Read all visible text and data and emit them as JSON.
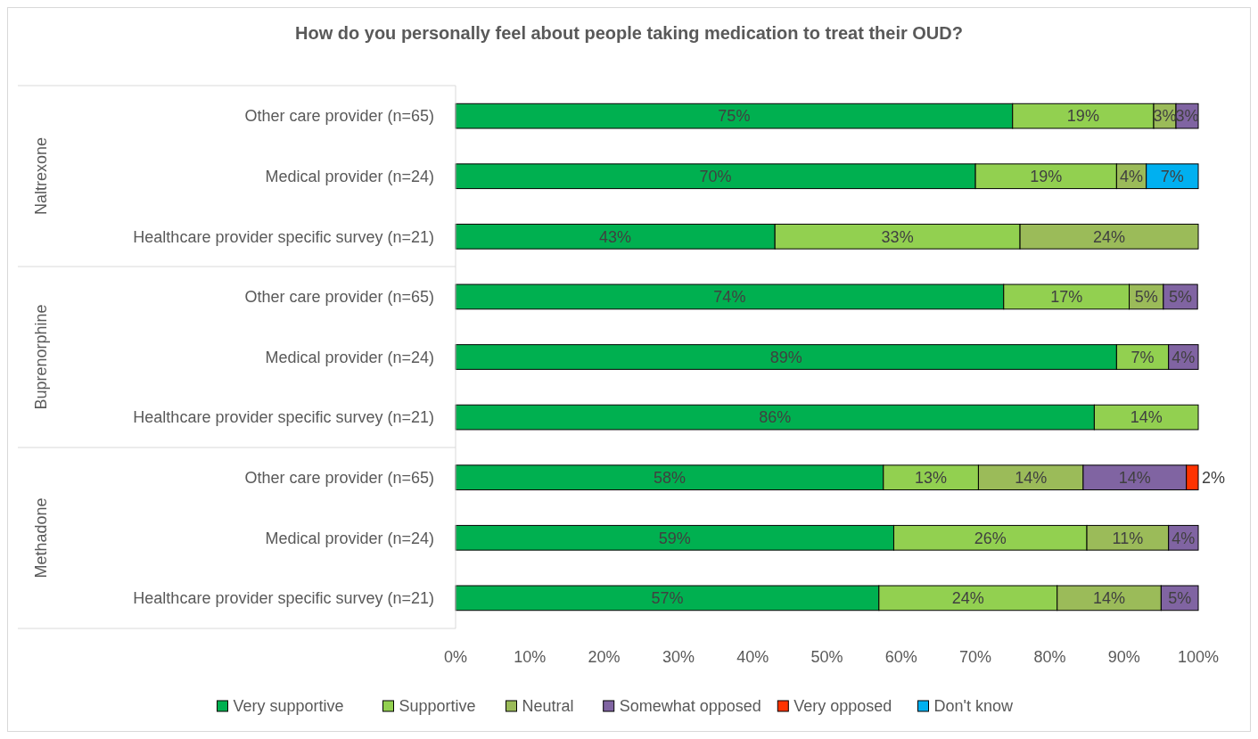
{
  "chart_data": {
    "type": "bar",
    "orientation": "horizontal",
    "stacked": true,
    "title": "How do you personally feel about people taking medication to treat their OUD?",
    "categories": [
      "Other care provider (n=65)",
      "Medical provider (n=24)",
      "Healthcare provider specific survey (n=21)",
      "Other care provider (n=65)",
      "Medical provider (n=24)",
      "Healthcare provider specific survey (n=21)",
      "Other care provider (n=65)",
      "Medical provider (n=24)",
      "Healthcare provider specific survey (n=21)"
    ],
    "annotations": [
      "Naltrexone",
      "Buprenorphine",
      "Methadone"
    ],
    "series": [
      {
        "name": "Very supportive",
        "color": "#00b050",
        "values": [
          75,
          70,
          43,
          73.8,
          89,
          86,
          57.6,
          59,
          57
        ],
        "value_labels": [
          "75%",
          "70%",
          "43%",
          "74%",
          "89%",
          "86%",
          "58%",
          "59%",
          "57%"
        ]
      },
      {
        "name": "Supportive",
        "color": "#92d050",
        "values": [
          19,
          19,
          33,
          16.9,
          7,
          14,
          12.8,
          26,
          24
        ],
        "value_labels": [
          "19%",
          "19%",
          "33%",
          "17%",
          "7%",
          "14%",
          "13%",
          "26%",
          "24%"
        ]
      },
      {
        "name": "Neutral",
        "color": "#9bbb59",
        "values": [
          3,
          4,
          24,
          4.6,
          null,
          null,
          14.1,
          11,
          14
        ],
        "value_labels": [
          "3%",
          "4%",
          "24%",
          "5%",
          null,
          null,
          "14%",
          "11%",
          "14%"
        ]
      },
      {
        "name": "Somewhat opposed",
        "color": "#8064a2",
        "values": [
          3,
          null,
          null,
          4.6,
          4,
          null,
          13.9,
          4,
          5
        ],
        "value_labels": [
          "3%",
          null,
          null,
          "5%",
          "4%",
          null,
          "14%",
          "4%",
          "5%"
        ]
      },
      {
        "name": "Very opposed",
        "color": "#ff3300",
        "values": [
          null,
          null,
          null,
          null,
          null,
          null,
          1.6,
          null,
          null
        ],
        "value_labels": [
          null,
          null,
          null,
          null,
          null,
          null,
          "2%",
          null,
          null
        ]
      },
      {
        "name": "Don't know",
        "color": "#00b0f0",
        "values": [
          null,
          7,
          null,
          null,
          null,
          null,
          null,
          null,
          null
        ],
        "value_labels": [
          null,
          "7%",
          null,
          null,
          null,
          null,
          null,
          null,
          null
        ]
      }
    ],
    "xlim": [
      0,
      100
    ],
    "xticks": [
      {
        "value": 0,
        "label": "0%"
      },
      {
        "value": 10,
        "label": "10%"
      },
      {
        "value": 20,
        "label": "20%"
      },
      {
        "value": 30,
        "label": "30%"
      },
      {
        "value": 40,
        "label": "40%"
      },
      {
        "value": 50,
        "label": "50%"
      },
      {
        "value": 60,
        "label": "60%"
      },
      {
        "value": 70,
        "label": "70%"
      },
      {
        "value": 80,
        "label": "80%"
      },
      {
        "value": 90,
        "label": "90%"
      },
      {
        "value": 100,
        "label": "100%"
      }
    ],
    "grid": false,
    "legend": "bottom"
  }
}
